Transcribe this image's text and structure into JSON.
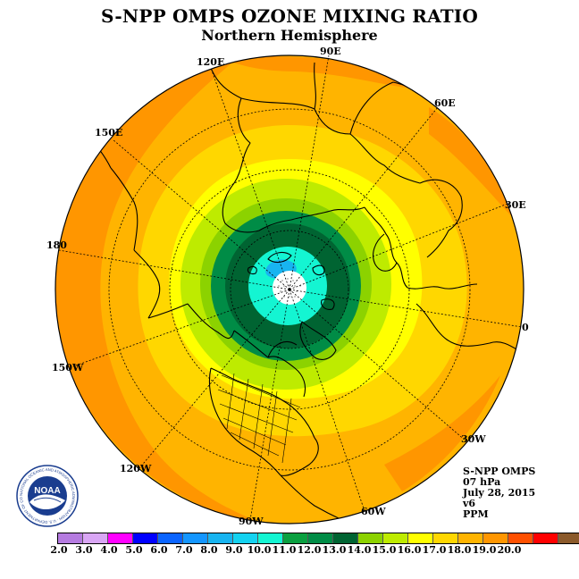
{
  "title": "S-NPP OMPS OZONE MIXING RATIO",
  "subtitle": "Northern Hemisphere",
  "longitude_labels": [
    "90E",
    "60E",
    "30E",
    "0",
    "30W",
    "60W",
    "90W",
    "120W",
    "150W",
    "180",
    "150E",
    "120E"
  ],
  "info": {
    "instrument": "S-NPP OMPS",
    "level": "07 hPa",
    "date": "July 28, 2015",
    "version": "v6",
    "units": "PPM"
  },
  "logo": {
    "text": "NOAA",
    "ring_text": "NATIONAL OCEANIC AND ATMOSPHERIC ADMINISTRATION · U.S. DEPARTMENT OF COMMERCE"
  },
  "colorbar": {
    "ticks": [
      "2.0",
      "3.0",
      "4.0",
      "5.0",
      "6.0",
      "7.0",
      "8.0",
      "9.0",
      "10.0",
      "11.0",
      "12.0",
      "13.0",
      "14.0",
      "15.0",
      "16.0",
      "17.0",
      "18.0",
      "19.0",
      "20.0"
    ],
    "colors": [
      "#b57be0",
      "#d9a6f5",
      "#ff00ff",
      "#0000ff",
      "#0a64ff",
      "#1496ff",
      "#18b4f0",
      "#14d2f0",
      "#14f5d2",
      "#0aa040",
      "#008c46",
      "#006432",
      "#8cd200",
      "#beeb00",
      "#ffff00",
      "#ffd700",
      "#ffb400",
      "#ff9600",
      "#ff5000",
      "#ff0000",
      "#8b5a2b"
    ]
  },
  "map_data": {
    "projection": "north-polar-stereographic",
    "field": "ozone mixing ratio",
    "pressure_level": "07 hPa",
    "units": "PPM",
    "contour_bands_ppm": [
      {
        "range": "< 9.0",
        "color": "#ffffff",
        "region": "pole"
      },
      {
        "range": "9.0-10.0",
        "color": "#14f5d2",
        "region": "inner polar ring"
      },
      {
        "range": "8.0-9.0",
        "color": "#18b4f0",
        "region": "small patch near pole"
      },
      {
        "range": "11.0-12.0",
        "color": "#006432",
        "region": "dark green ring ~70-80N"
      },
      {
        "range": "10.0-11.0",
        "color": "#008c46",
        "region": "green ring"
      },
      {
        "range": "12.0-13.0",
        "color": "#8cd200",
        "region": "ring ~60N"
      },
      {
        "range": "13.0-14.0",
        "color": "#beeb00",
        "region": "ring ~55N"
      },
      {
        "range": "14.0-15.0",
        "color": "#ffff00",
        "region": "ring ~45N"
      },
      {
        "range": "15.0-16.0",
        "color": "#ffd700",
        "region": "midlatitudes"
      },
      {
        "range": "16.0-17.0",
        "color": "#ffb400",
        "region": "subtropics"
      },
      {
        "range": "17.0-18.0",
        "color": "#ff9600",
        "region": "tropical belt, Pacific"
      }
    ]
  }
}
